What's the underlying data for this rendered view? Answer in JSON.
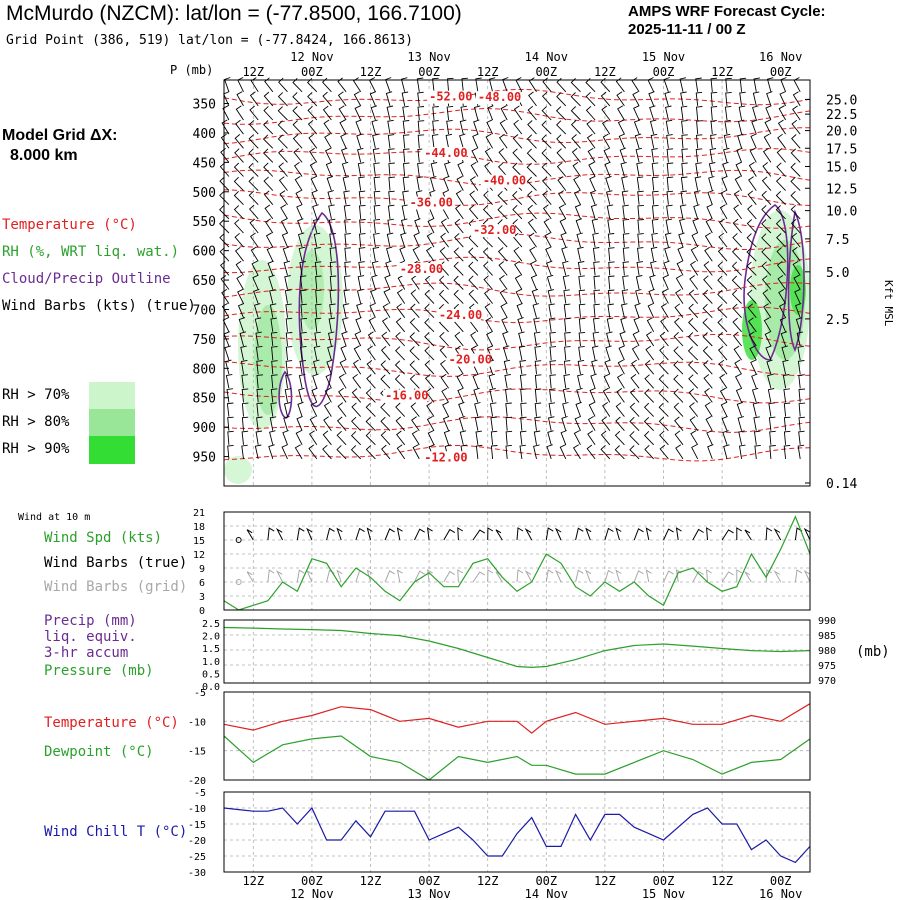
{
  "header": {
    "title": "McMurdo (NZCM):  lat/lon = (-77.8500, 166.7100)",
    "subtitle": "Grid Point (386, 519) lat/lon = (-77.8424, 166.8613)",
    "cycle_line1": "AMPS WRF Forecast Cycle:",
    "cycle_line2": "2025-11-11 / 00  Z"
  },
  "left_panel": {
    "model_grid_label": "Model Grid ΔX:",
    "model_grid_value": "8.000 km",
    "legend_temperature": "Temperature (°C)",
    "legend_rh": "RH (%, WRT liq. wat.)",
    "legend_cloud": "Cloud/Precip Outline",
    "legend_wind": "Wind Barbs (kts) (true)",
    "rh_70": "RH > 70%",
    "rh_80": "RH > 80%",
    "rh_90": "RH > 90%"
  },
  "colors": {
    "temperature": "#e02020",
    "rh": "#2ca02c",
    "cloud": "#6a2c91",
    "wind_gray": "#a8a8a8",
    "wind_chill": "#1a1aa8",
    "rh70": "#ccf5cc",
    "rh80": "#99e699",
    "rh90": "#33dd33"
  },
  "chart_data": [
    {
      "type": "contour",
      "panel": "upper-air time-height section",
      "y_title": "P (mb)",
      "y_ticks": [
        350,
        400,
        450,
        500,
        550,
        600,
        650,
        700,
        750,
        800,
        850,
        900,
        950
      ],
      "ylim": [
        1000,
        310
      ],
      "right_axis_title": "Kft MSL",
      "right_ticks": [
        "25.0",
        "22.5",
        "20.0",
        "17.5",
        "15.0",
        "12.5",
        "10.0",
        "7.5",
        "5.0",
        "2.5",
        "0.14"
      ],
      "time_ticks_top": [
        "12Z",
        "00Z",
        "12Z",
        "00Z",
        "12Z",
        "00Z",
        "12Z",
        "00Z",
        "12Z",
        "00Z"
      ],
      "day_labels_top": [
        "12 Nov",
        "13 Nov",
        "14 Nov",
        "15 Nov",
        "16 Nov"
      ],
      "time_range_hours": [
        0,
        120
      ],
      "temperature_contour_labels": [
        {
          "label": "-52.00",
          "t": 42,
          "p": 345
        },
        {
          "label": "-48.00",
          "t": 52,
          "p": 346
        },
        {
          "label": "-44.00",
          "t": 41,
          "p": 441
        },
        {
          "label": "-40.00",
          "t": 53,
          "p": 488
        },
        {
          "label": "-36.00",
          "t": 38,
          "p": 525
        },
        {
          "label": "-32.00",
          "t": 51,
          "p": 572
        },
        {
          "label": "-28.00",
          "t": 36,
          "p": 638
        },
        {
          "label": "-24.00",
          "t": 44,
          "p": 716
        },
        {
          "label": "-20.00",
          "t": 46,
          "p": 792
        },
        {
          "label": "-16.00",
          "t": 33,
          "p": 853
        },
        {
          "label": "-12.00",
          "t": 41,
          "p": 958
        }
      ]
    },
    {
      "type": "line",
      "panel": "surface wind",
      "caption": "Wind at 10 m",
      "legend": [
        "Wind Spd (kts)",
        "Wind Barbs (true)",
        "Wind Barbs (grid)"
      ],
      "y_ticks": [
        0,
        3,
        6,
        9,
        12,
        15,
        18,
        21
      ],
      "ylim": [
        0,
        21
      ],
      "x_hours": [
        0,
        3,
        6,
        9,
        12,
        15,
        18,
        21,
        24,
        27,
        30,
        33,
        36,
        39,
        42,
        45,
        48,
        51,
        54,
        57,
        60,
        63,
        66,
        69,
        72,
        75,
        78,
        81,
        84,
        87,
        90,
        93,
        96,
        99,
        102,
        105,
        108,
        111,
        114,
        117,
        120
      ],
      "series": [
        {
          "name": "Wind Spd (kts)",
          "values": [
            2,
            0,
            1,
            2,
            6,
            4,
            11,
            10,
            5,
            9,
            7,
            4,
            2,
            6,
            8,
            5,
            5,
            10,
            11,
            7,
            4,
            6,
            12,
            10,
            5,
            3,
            6,
            4,
            6,
            3,
            1,
            8,
            9,
            6,
            4,
            5,
            12,
            7,
            13,
            20,
            12
          ]
        }
      ]
    },
    {
      "type": "line",
      "panel": "precipitation and pressure",
      "legend": [
        "Precip (mm) liq. equiv. 3-hr accum",
        "Pressure (mb)"
      ],
      "left_ticks": [
        "2.5",
        "2.0",
        "1.5",
        "1.0",
        "0.5",
        "0.0"
      ],
      "right_ticks": [
        990,
        985,
        980,
        975,
        970
      ],
      "right_unit": "(mb)",
      "ylim_pressure": [
        969,
        990
      ],
      "x_hours": [
        0,
        6,
        12,
        18,
        24,
        30,
        36,
        42,
        48,
        54,
        60,
        63,
        66,
        72,
        78,
        84,
        90,
        96,
        102,
        108,
        114,
        120
      ],
      "series": [
        {
          "name": "Pressure (mb)",
          "values": [
            987.5,
            987.3,
            987.0,
            986.8,
            986.5,
            985.5,
            984.8,
            983.0,
            980.5,
            977.5,
            974.5,
            974.2,
            974.5,
            976.8,
            979.8,
            981.5,
            982.0,
            981.3,
            980.5,
            979.8,
            979.5,
            979.8
          ]
        },
        {
          "name": "Precip (mm)",
          "values": [
            0,
            0,
            0,
            0,
            0,
            0,
            0,
            0,
            0,
            0,
            0,
            0,
            0,
            0,
            0,
            0,
            0,
            0,
            0,
            0,
            0,
            0
          ]
        }
      ]
    },
    {
      "type": "line",
      "panel": "temperature and dewpoint",
      "legend": [
        "Temperature (°C)",
        "Dewpoint (°C)"
      ],
      "y_ticks": [
        -5,
        -10,
        -15,
        -20
      ],
      "ylim": [
        -20,
        -5
      ],
      "x_hours": [
        0,
        6,
        12,
        18,
        24,
        30,
        36,
        42,
        48,
        54,
        60,
        63,
        66,
        72,
        78,
        84,
        90,
        96,
        102,
        108,
        114,
        120
      ],
      "series": [
        {
          "name": "Temperature (°C)",
          "values": [
            -10.5,
            -11.5,
            -10,
            -9,
            -7.5,
            -8,
            -10,
            -9.5,
            -11,
            -10,
            -10,
            -12,
            -10,
            -8.5,
            -10.5,
            -10,
            -9.5,
            -10.5,
            -10.5,
            -9,
            -10,
            -7
          ]
        },
        {
          "name": "Dewpoint (°C)",
          "values": [
            -12.5,
            -17,
            -14,
            -13,
            -12.5,
            -16,
            -17,
            -20,
            -16,
            -17,
            -16,
            -17.5,
            -17.5,
            -19,
            -19,
            -17,
            -15,
            -16.5,
            -19,
            -17,
            -16.5,
            -13
          ]
        }
      ]
    },
    {
      "type": "line",
      "panel": "wind chill",
      "legend": [
        "Wind Chill T (°C)"
      ],
      "y_ticks": [
        -5,
        -10,
        -15,
        -20,
        -25,
        -30
      ],
      "ylim": [
        -30,
        -5
      ],
      "x_hours": [
        0,
        3,
        6,
        9,
        12,
        15,
        18,
        21,
        24,
        27,
        30,
        33,
        36,
        39,
        42,
        45,
        48,
        51,
        54,
        57,
        60,
        63,
        66,
        69,
        72,
        75,
        78,
        81,
        84,
        87,
        90,
        93,
        96,
        99,
        102,
        105,
        108,
        111,
        114,
        117,
        120
      ],
      "series": [
        {
          "name": "Wind Chill T (°C)",
          "values": [
            -10,
            -10.5,
            -11,
            -11,
            -10,
            -15,
            -10,
            -20,
            -20,
            -14,
            -19,
            -11,
            -11,
            -11,
            -20,
            -18,
            -16,
            -20,
            -25,
            -25,
            -18,
            -13,
            -22,
            -22,
            -12,
            -20,
            -12,
            -12,
            -16,
            -18,
            -20,
            -16,
            -12,
            -10,
            -15,
            -15,
            -23,
            -20,
            -25,
            -27,
            -22
          ]
        }
      ]
    }
  ],
  "bottom_axis": {
    "time_ticks": [
      "12Z",
      "00Z",
      "12Z",
      "00Z",
      "12Z",
      "00Z",
      "12Z",
      "00Z",
      "12Z",
      "00Z"
    ],
    "day_labels": [
      "12 Nov",
      "13 Nov",
      "14 Nov",
      "15 Nov",
      "16 Nov"
    ]
  }
}
